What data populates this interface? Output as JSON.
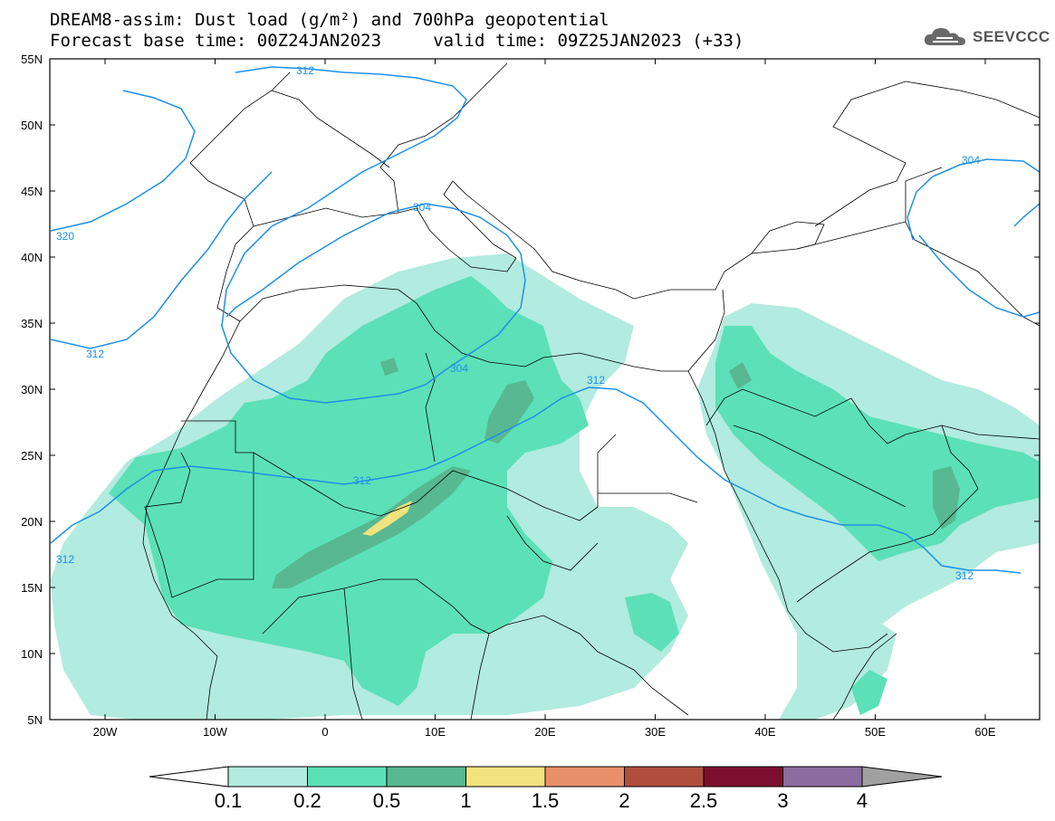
{
  "header": {
    "title_line1": "DREAM8-assim: Dust load (g/m²) and 700hPa geopotential",
    "title_line2": "Forecast base time: 00Z24JAN2023     valid time: 09Z25JAN2023 (+33)",
    "logo_text": "SEEVCCC"
  },
  "map": {
    "lat_labels": [
      "55N",
      "50N",
      "45N",
      "40N",
      "35N",
      "30N",
      "25N",
      "20N",
      "15N",
      "10N",
      "5N"
    ],
    "lon_labels": [
      "20W",
      "10W",
      "0",
      "10E",
      "20E",
      "30E",
      "40E",
      "50E",
      "60E"
    ],
    "contour_labels": [
      "312",
      "304",
      "320",
      "312",
      "304",
      "312",
      "312",
      "312",
      "304",
      "312"
    ],
    "contour_color": "#1e90e8"
  },
  "colorbar": {
    "ticks": [
      "0.1",
      "0.2",
      "0.5",
      "1",
      "1.5",
      "2",
      "2.5",
      "3",
      "4"
    ],
    "colors": [
      "#ffffff",
      "#b2ebdf",
      "#5ce0b7",
      "#58b891",
      "#f1e37e",
      "#e8906a",
      "#b04e3e",
      "#7c0f30",
      "#8c6ba0",
      "#a0a0a0"
    ]
  }
}
